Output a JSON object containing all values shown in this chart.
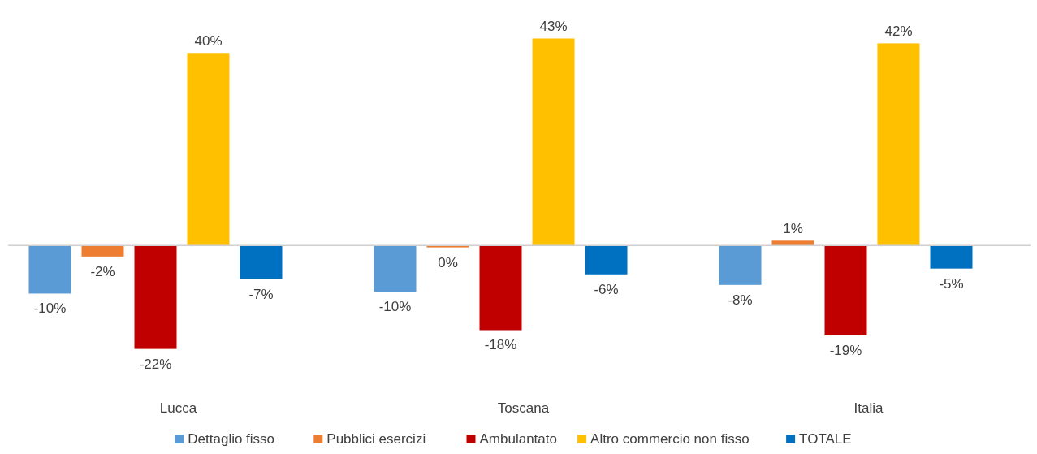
{
  "chart_data": {
    "type": "bar",
    "categories": [
      "Lucca",
      "Toscana",
      "Italia"
    ],
    "legend": "bottom",
    "series": [
      {
        "name": "Dettaglio fisso",
        "color": "#5b9bd5",
        "values": [
          -10,
          -9.6,
          -8.2
        ],
        "value_labels": [
          "-10%",
          "-10%",
          "-8%"
        ]
      },
      {
        "name": "Pubblici esercizi",
        "color": "#ed7d31",
        "values": [
          -2.3,
          -0.4,
          1
        ],
        "value_labels": [
          "-2%",
          "0%",
          "1%"
        ]
      },
      {
        "name": "Ambulantato",
        "color": "#c00000",
        "values": [
          -21.5,
          -17.6,
          -18.7
        ],
        "value_labels": [
          "-22%",
          "-18%",
          "-19%"
        ]
      },
      {
        "name": "Altro commercio non fisso",
        "color": "#ffc000",
        "values": [
          40,
          43,
          42
        ],
        "value_labels": [
          "40%",
          "43%",
          "42%"
        ]
      },
      {
        "name": "TOTALE",
        "color": "#0070c0",
        "values": [
          -7,
          -6,
          -4.8
        ],
        "value_labels": [
          "-7%",
          "-6%",
          "-5%"
        ]
      }
    ]
  }
}
